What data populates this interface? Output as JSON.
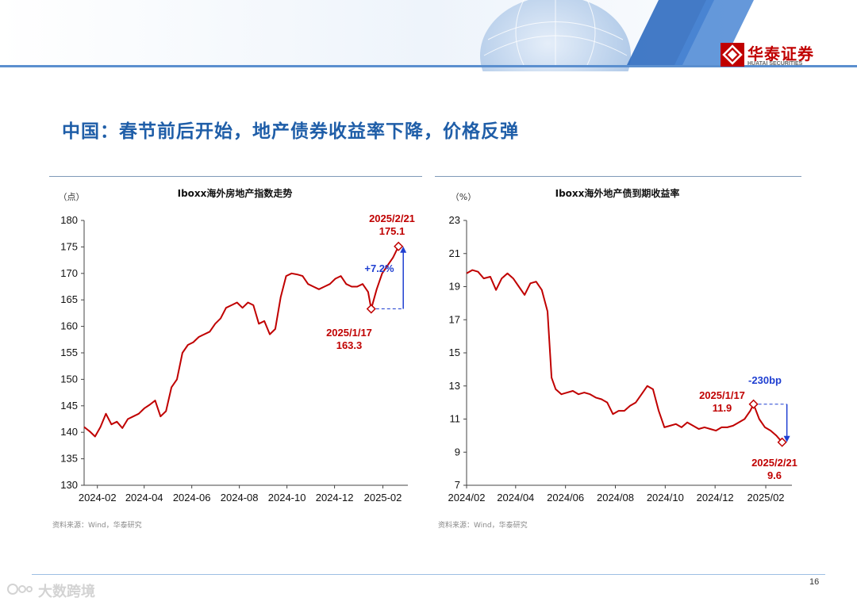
{
  "brand": {
    "name": "华泰证券",
    "sub": "HUATAI SECURITIES",
    "logo_icon": "huatai-logo-icon",
    "color": "#c00000"
  },
  "title": "中国：春节前后开始，地产债券收益率下降，价格反弹",
  "page_number": "16",
  "watermark": "大数跨境",
  "chart_data": [
    {
      "type": "line",
      "title": "Iboxx海外房地产指数走势",
      "ylabel": "（点）",
      "ylim": [
        130,
        180
      ],
      "yticks": [
        "130",
        "135",
        "140",
        "145",
        "150",
        "155",
        "160",
        "165",
        "170",
        "175",
        "180"
      ],
      "xlabels": [
        "2024-02",
        "2024-04",
        "2024-06",
        "2024-08",
        "2024-10",
        "2024-12",
        "2025-02"
      ],
      "grid": false,
      "color": "#c00000",
      "series": [
        {
          "x": [
            "2024-01-15",
            "2024-01-22",
            "2024-01-29",
            "2024-02-05",
            "2024-02-12",
            "2024-02-19",
            "2024-02-26",
            "2024-03-04",
            "2024-03-11",
            "2024-03-18",
            "2024-03-25",
            "2024-04-01",
            "2024-04-08",
            "2024-04-15",
            "2024-04-22",
            "2024-04-29",
            "2024-05-06",
            "2024-05-13",
            "2024-05-20",
            "2024-05-27",
            "2024-06-03",
            "2024-06-10",
            "2024-06-17",
            "2024-06-24",
            "2024-07-01",
            "2024-07-08",
            "2024-07-15",
            "2024-07-22",
            "2024-07-29",
            "2024-08-05",
            "2024-08-12",
            "2024-08-19",
            "2024-08-26",
            "2024-09-02",
            "2024-09-09",
            "2024-09-16",
            "2024-09-23",
            "2024-09-30",
            "2024-10-07",
            "2024-10-14",
            "2024-10-21",
            "2024-10-28",
            "2024-11-04",
            "2024-11-11",
            "2024-11-18",
            "2024-11-25",
            "2024-12-02",
            "2024-12-09",
            "2024-12-16",
            "2024-12-23",
            "2024-12-30",
            "2025-01-06",
            "2025-01-13",
            "2025-01-17",
            "2025-01-24",
            "2025-01-31",
            "2025-02-07",
            "2025-02-14",
            "2025-02-21"
          ],
          "values": [
            141.0,
            140.2,
            139.2,
            141.0,
            143.5,
            141.5,
            142.0,
            140.8,
            142.5,
            143.0,
            143.5,
            144.5,
            145.2,
            146.0,
            143.0,
            144.0,
            148.5,
            150.0,
            155.0,
            156.5,
            157.0,
            158.0,
            158.5,
            159.0,
            160.5,
            161.5,
            163.5,
            164.0,
            164.5,
            163.5,
            164.5,
            164.0,
            160.5,
            161.0,
            158.5,
            159.5,
            165.5,
            169.5,
            170.0,
            169.8,
            169.5,
            168.0,
            167.5,
            167.0,
            167.5,
            168.0,
            169.0,
            169.5,
            168.0,
            167.5,
            167.5,
            168.0,
            166.5,
            163.3,
            167.0,
            170.0,
            171.5,
            173.0,
            175.1
          ]
        }
      ],
      "annotations": {
        "start_label": "2025/1/17",
        "start_value": "163.3",
        "end_label": "2025/2/21",
        "end_value": "175.1",
        "change": "+7.2%",
        "change_color": "#1f3fd1"
      },
      "source": "资料来源：Wind，华泰研究"
    },
    {
      "type": "line",
      "title": "Iboxx海外地产债到期收益率",
      "ylabel": "（%）",
      "ylim": [
        7,
        23
      ],
      "yticks": [
        "7",
        "9",
        "11",
        "13",
        "15",
        "17",
        "19",
        "21",
        "23"
      ],
      "xlabels": [
        "2024/02",
        "2024/04",
        "2024/06",
        "2024/08",
        "2024/10",
        "2024/12",
        "2025/02"
      ],
      "grid": false,
      "color": "#c00000",
      "series": [
        {
          "x": [
            "2024-02-01",
            "2024-02-08",
            "2024-02-15",
            "2024-02-22",
            "2024-03-01",
            "2024-03-08",
            "2024-03-15",
            "2024-03-22",
            "2024-03-29",
            "2024-04-05",
            "2024-04-12",
            "2024-04-19",
            "2024-04-26",
            "2024-05-03",
            "2024-05-10",
            "2024-05-15",
            "2024-05-20",
            "2024-05-27",
            "2024-06-03",
            "2024-06-10",
            "2024-06-17",
            "2024-06-24",
            "2024-07-01",
            "2024-07-08",
            "2024-07-15",
            "2024-07-22",
            "2024-07-29",
            "2024-08-05",
            "2024-08-12",
            "2024-08-19",
            "2024-08-26",
            "2024-09-02",
            "2024-09-09",
            "2024-09-16",
            "2024-09-23",
            "2024-09-30",
            "2024-10-07",
            "2024-10-14",
            "2024-10-21",
            "2024-10-28",
            "2024-11-04",
            "2024-11-11",
            "2024-11-18",
            "2024-11-25",
            "2024-12-02",
            "2024-12-09",
            "2024-12-16",
            "2024-12-23",
            "2024-12-30",
            "2025-01-06",
            "2025-01-13",
            "2025-01-17",
            "2025-01-24",
            "2025-01-31",
            "2025-02-07",
            "2025-02-14",
            "2025-02-21"
          ],
          "values": [
            19.8,
            20.0,
            19.9,
            19.5,
            19.6,
            18.8,
            19.5,
            19.8,
            19.5,
            19.0,
            18.5,
            19.2,
            19.3,
            18.8,
            17.5,
            13.5,
            12.8,
            12.5,
            12.6,
            12.7,
            12.5,
            12.6,
            12.5,
            12.3,
            12.2,
            12.0,
            11.3,
            11.5,
            11.5,
            11.8,
            12.0,
            12.5,
            13.0,
            12.8,
            11.5,
            10.5,
            10.6,
            10.7,
            10.5,
            10.8,
            10.6,
            10.4,
            10.5,
            10.4,
            10.3,
            10.5,
            10.5,
            10.6,
            10.8,
            11.0,
            11.5,
            11.9,
            11.0,
            10.5,
            10.3,
            10.0,
            9.6
          ]
        }
      ],
      "annotations": {
        "start_label": "2025/1/17",
        "start_value": "11.9",
        "end_label": "2025/2/21",
        "end_value": "9.6",
        "change": "-230bp",
        "change_color": "#1f3fd1"
      },
      "source": "资料来源：Wind，华泰研究"
    }
  ]
}
